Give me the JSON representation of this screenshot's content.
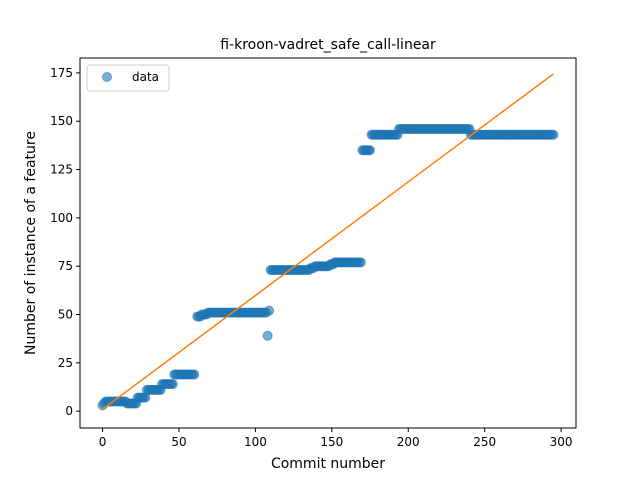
{
  "chart_data": {
    "type": "scatter",
    "title": "fi-kroon-vadret_safe_call-linear",
    "xlabel": "Commit number",
    "ylabel": "Number of instance of a feature",
    "xlim": [
      -14.75,
      309.75
    ],
    "ylim": [
      -8.7,
      182.7
    ],
    "xticks": [
      0,
      50,
      100,
      150,
      200,
      250,
      300
    ],
    "yticks": [
      0,
      25,
      50,
      75,
      100,
      125,
      150,
      175
    ],
    "grid": false,
    "legend": {
      "placement": "top-left",
      "entries": [
        {
          "label": "data",
          "marker": "circle",
          "color": "#1f77b4"
        }
      ]
    },
    "colors": {
      "points": "#1f77b4",
      "fit_line": "#ff7f0e"
    },
    "series": [
      {
        "name": "data",
        "kind": "points",
        "segments": [
          {
            "from": 0,
            "to": 0,
            "y": 3
          },
          {
            "from": 1,
            "to": 1,
            "y": 4
          },
          {
            "from": 2,
            "to": 15,
            "y": 5
          },
          {
            "from": 16,
            "to": 22,
            "y": 4
          },
          {
            "from": 23,
            "to": 28,
            "y": 7
          },
          {
            "from": 29,
            "to": 38,
            "y": 11
          },
          {
            "from": 39,
            "to": 46,
            "y": 14
          },
          {
            "from": 47,
            "to": 60,
            "y": 19
          },
          {
            "from": 62,
            "to": 64,
            "y": 49
          },
          {
            "from": 65,
            "to": 68,
            "y": 50
          },
          {
            "from": 69,
            "to": 107,
            "y": 51
          },
          {
            "from": 108,
            "to": 108,
            "y": 39
          },
          {
            "from": 109,
            "to": 109,
            "y": 52
          },
          {
            "from": 110,
            "to": 135,
            "y": 73
          },
          {
            "from": 136,
            "to": 138,
            "y": 74
          },
          {
            "from": 139,
            "to": 148,
            "y": 75
          },
          {
            "from": 149,
            "to": 151,
            "y": 76
          },
          {
            "from": 152,
            "to": 169,
            "y": 77
          },
          {
            "from": 170,
            "to": 175,
            "y": 135
          },
          {
            "from": 176,
            "to": 193,
            "y": 143
          },
          {
            "from": 194,
            "to": 240,
            "y": 146
          },
          {
            "from": 241,
            "to": 295,
            "y": 143
          }
        ]
      },
      {
        "name": "",
        "kind": "line",
        "x": [
          0,
          295
        ],
        "y": [
          1,
          174.5
        ]
      }
    ]
  }
}
